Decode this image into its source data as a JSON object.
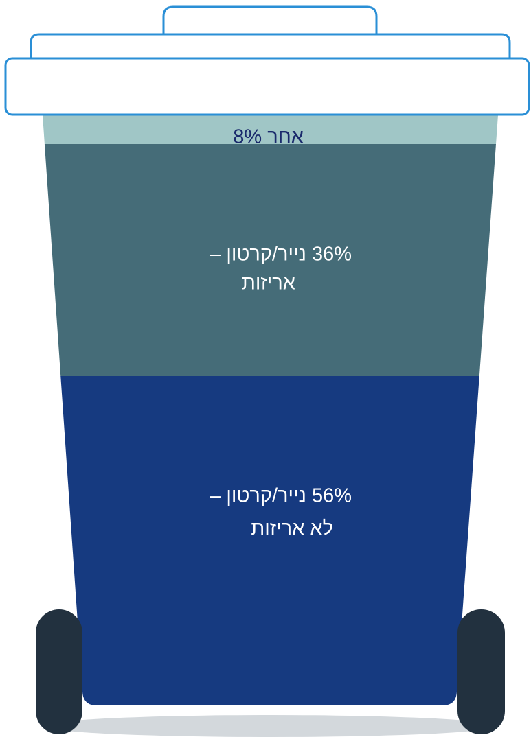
{
  "segments": [
    {
      "lines": [
        "אחר 8%"
      ]
    },
    {
      "lines": [
        "36% נייר/קרטון –",
        "אריזות"
      ]
    },
    {
      "lines": [
        "56% נייר/קרטון –",
        "לא אריזות"
      ]
    }
  ]
}
